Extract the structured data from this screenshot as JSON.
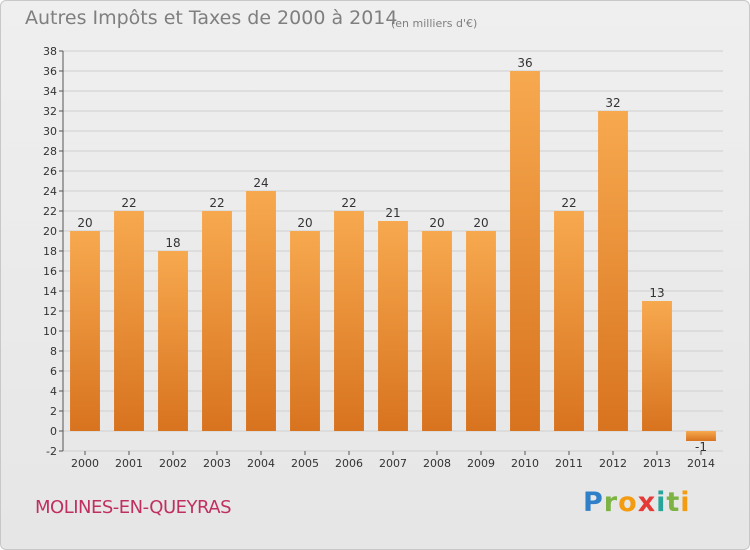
{
  "page": {
    "title": "Autres Impôts et Taxes de 2000 à 2014",
    "subtitle": "(en milliers d'€)",
    "commune": "MOLINES-EN-QUEYRAS",
    "logo": "Proxiti"
  },
  "colors": {
    "bar_light": "#f7a94f",
    "bar_dark": "#d8731f",
    "grid": "#cfcfcf",
    "commune_text": "#c0305f",
    "title_text": "#7f7f7f"
  },
  "chart_data": {
    "type": "bar",
    "title": "Autres Impôts et Taxes de 2000 à 2014",
    "subtitle": "(en milliers d'€)",
    "categories": [
      "2000",
      "2001",
      "2002",
      "2003",
      "2004",
      "2005",
      "2006",
      "2007",
      "2008",
      "2009",
      "2010",
      "2011",
      "2012",
      "2013",
      "2014"
    ],
    "values": [
      20,
      22,
      18,
      22,
      24,
      20,
      22,
      21,
      20,
      20,
      36,
      22,
      32,
      13,
      -1
    ],
    "xlabel": "",
    "ylabel": "",
    "ylim": [
      -2,
      38
    ],
    "yticks": [
      -2,
      0,
      2,
      4,
      6,
      8,
      10,
      12,
      14,
      16,
      18,
      20,
      22,
      24,
      26,
      28,
      30,
      32,
      34,
      36,
      38
    ],
    "grid": true,
    "legend": "none"
  }
}
